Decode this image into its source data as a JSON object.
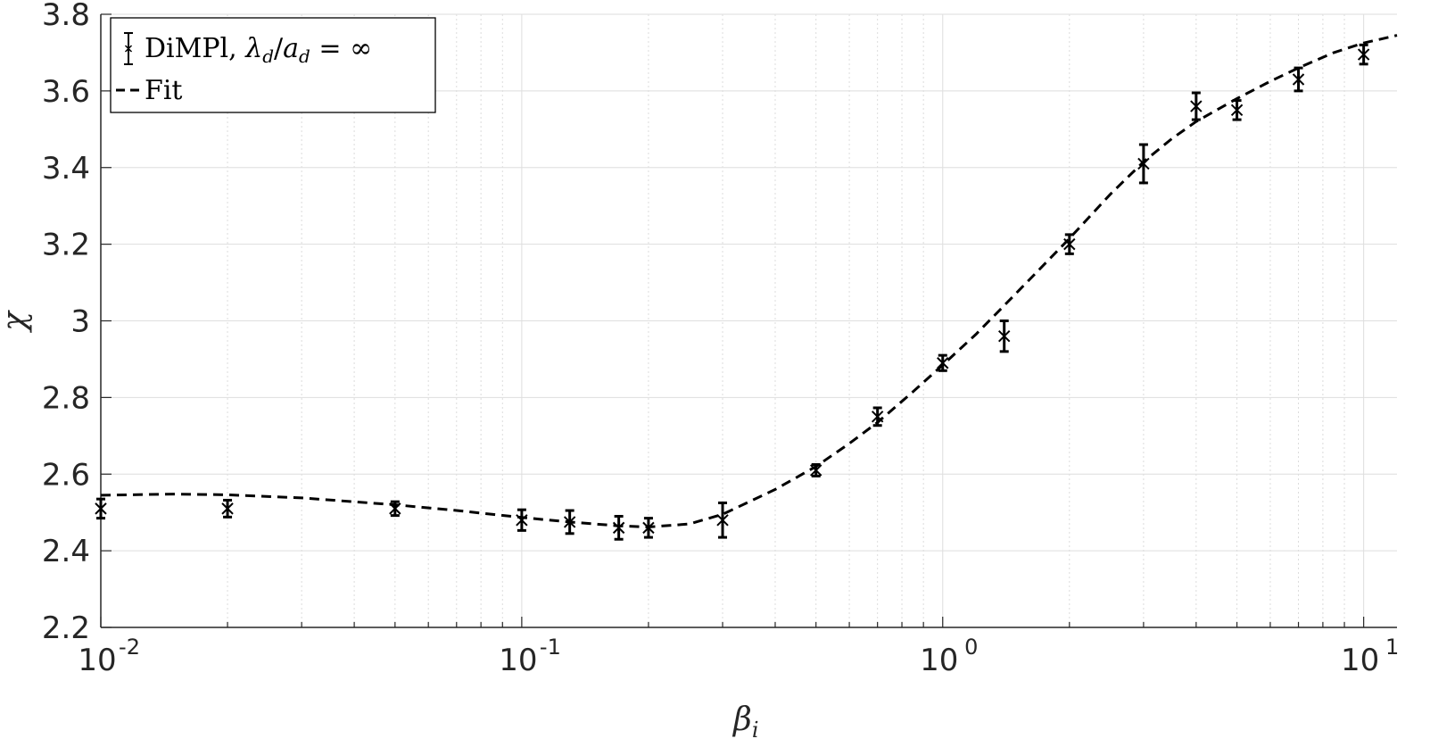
{
  "chart_data": {
    "type": "scatter",
    "x_scale": "log",
    "xlim": [
      0.01,
      12
    ],
    "ylim": [
      2.2,
      3.8
    ],
    "grid": true,
    "minor_grid_x": true,
    "legend_position": "top-left",
    "xlabel_base": "β",
    "xlabel_sub": "i",
    "ylabel": "χ",
    "x_ticks": [
      {
        "value": 0.01,
        "base": "10",
        "exp": "-2"
      },
      {
        "value": 0.1,
        "base": "10",
        "exp": "-1"
      },
      {
        "value": 1,
        "base": "10",
        "exp": "0"
      },
      {
        "value": 10,
        "base": "10",
        "exp": "1"
      }
    ],
    "y_ticks": [
      {
        "value": 2.2,
        "label": "2.2"
      },
      {
        "value": 2.4,
        "label": "2.4"
      },
      {
        "value": 2.6,
        "label": "2.6"
      },
      {
        "value": 2.8,
        "label": "2.8"
      },
      {
        "value": 3.0,
        "label": "3"
      },
      {
        "value": 3.2,
        "label": "3.2"
      },
      {
        "value": 3.4,
        "label": "3.4"
      },
      {
        "value": 3.6,
        "label": "3.6"
      },
      {
        "value": 3.8,
        "label": "3.8"
      }
    ],
    "series": [
      {
        "name": "DiMPl, λd/ad = ∞",
        "legend_parts": {
          "prefix": "DiMPl, ",
          "lambda": "λ",
          "sub_d": "d",
          "slash": "/",
          "a": "a",
          "sub_d2": "d",
          "eq": " = ∞"
        },
        "kind": "errorbar",
        "marker": "x",
        "color": "#000000",
        "points": [
          {
            "x": 0.01,
            "y": 2.51,
            "err": 0.025
          },
          {
            "x": 0.02,
            "y": 2.51,
            "err": 0.022
          },
          {
            "x": 0.05,
            "y": 2.51,
            "err": 0.018
          },
          {
            "x": 0.1,
            "y": 2.48,
            "err": 0.027
          },
          {
            "x": 0.13,
            "y": 2.475,
            "err": 0.03
          },
          {
            "x": 0.17,
            "y": 2.46,
            "err": 0.03
          },
          {
            "x": 0.2,
            "y": 2.46,
            "err": 0.025
          },
          {
            "x": 0.3,
            "y": 2.48,
            "err": 0.045
          },
          {
            "x": 0.5,
            "y": 2.61,
            "err": 0.015
          },
          {
            "x": 0.7,
            "y": 2.75,
            "err": 0.023
          },
          {
            "x": 1.0,
            "y": 2.89,
            "err": 0.02
          },
          {
            "x": 1.4,
            "y": 2.96,
            "err": 0.04
          },
          {
            "x": 2.0,
            "y": 3.2,
            "err": 0.025
          },
          {
            "x": 3.0,
            "y": 3.41,
            "err": 0.05
          },
          {
            "x": 4.0,
            "y": 3.56,
            "err": 0.035
          },
          {
            "x": 5.0,
            "y": 3.55,
            "err": 0.025
          },
          {
            "x": 7.0,
            "y": 3.63,
            "err": 0.03
          },
          {
            "x": 10.0,
            "y": 3.695,
            "err": 0.025
          }
        ]
      },
      {
        "name": "Fit",
        "kind": "line",
        "style": "dashed",
        "color": "#000000",
        "x": [
          0.01,
          0.015,
          0.02,
          0.03,
          0.05,
          0.07,
          0.1,
          0.13,
          0.17,
          0.2,
          0.25,
          0.3,
          0.4,
          0.5,
          0.6,
          0.7,
          0.85,
          1.0,
          1.2,
          1.4,
          1.7,
          2.0,
          2.5,
          3.0,
          3.5,
          4.0,
          5.0,
          6.0,
          7.0,
          8.5,
          10.0,
          12.0
        ],
        "y": [
          2.545,
          2.548,
          2.546,
          2.538,
          2.52,
          2.505,
          2.487,
          2.475,
          2.465,
          2.462,
          2.47,
          2.495,
          2.56,
          2.62,
          2.68,
          2.735,
          2.815,
          2.885,
          2.965,
          3.04,
          3.135,
          3.215,
          3.33,
          3.415,
          3.475,
          3.52,
          3.58,
          3.625,
          3.66,
          3.7,
          3.725,
          3.745
        ]
      }
    ]
  }
}
